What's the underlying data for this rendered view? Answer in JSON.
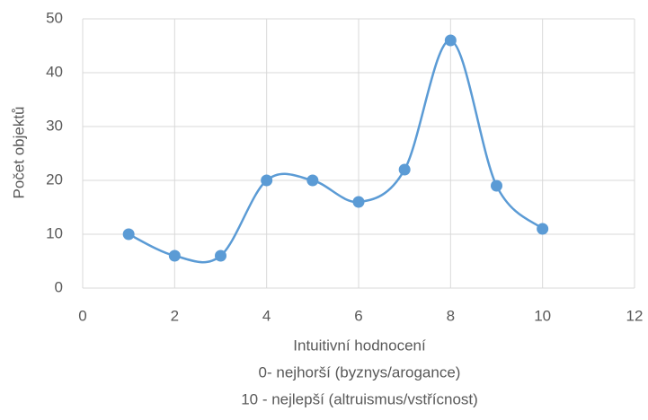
{
  "chart_data": {
    "type": "scatter",
    "x_label": [
      "Intuitivní hodnocení",
      "0- nejhorší (byznys/arogance)",
      "10 - nejlepší (altruismus/vstřícnost)"
    ],
    "y_label": "Počet objektů",
    "x": [
      1,
      2,
      3,
      4,
      5,
      6,
      7,
      8,
      9,
      10
    ],
    "series": [
      {
        "color": "#5b9bd5",
        "values": [
          10,
          6,
          6,
          20,
          20,
          16,
          22,
          46,
          19,
          11
        ]
      }
    ],
    "smooth": true,
    "xlim": [
      0,
      12
    ],
    "xticks": [
      0,
      2,
      4,
      6,
      8,
      10,
      12
    ],
    "ylim": [
      0,
      50
    ],
    "yticks": [
      0,
      10,
      20,
      30,
      40,
      50
    ],
    "grid": true
  }
}
